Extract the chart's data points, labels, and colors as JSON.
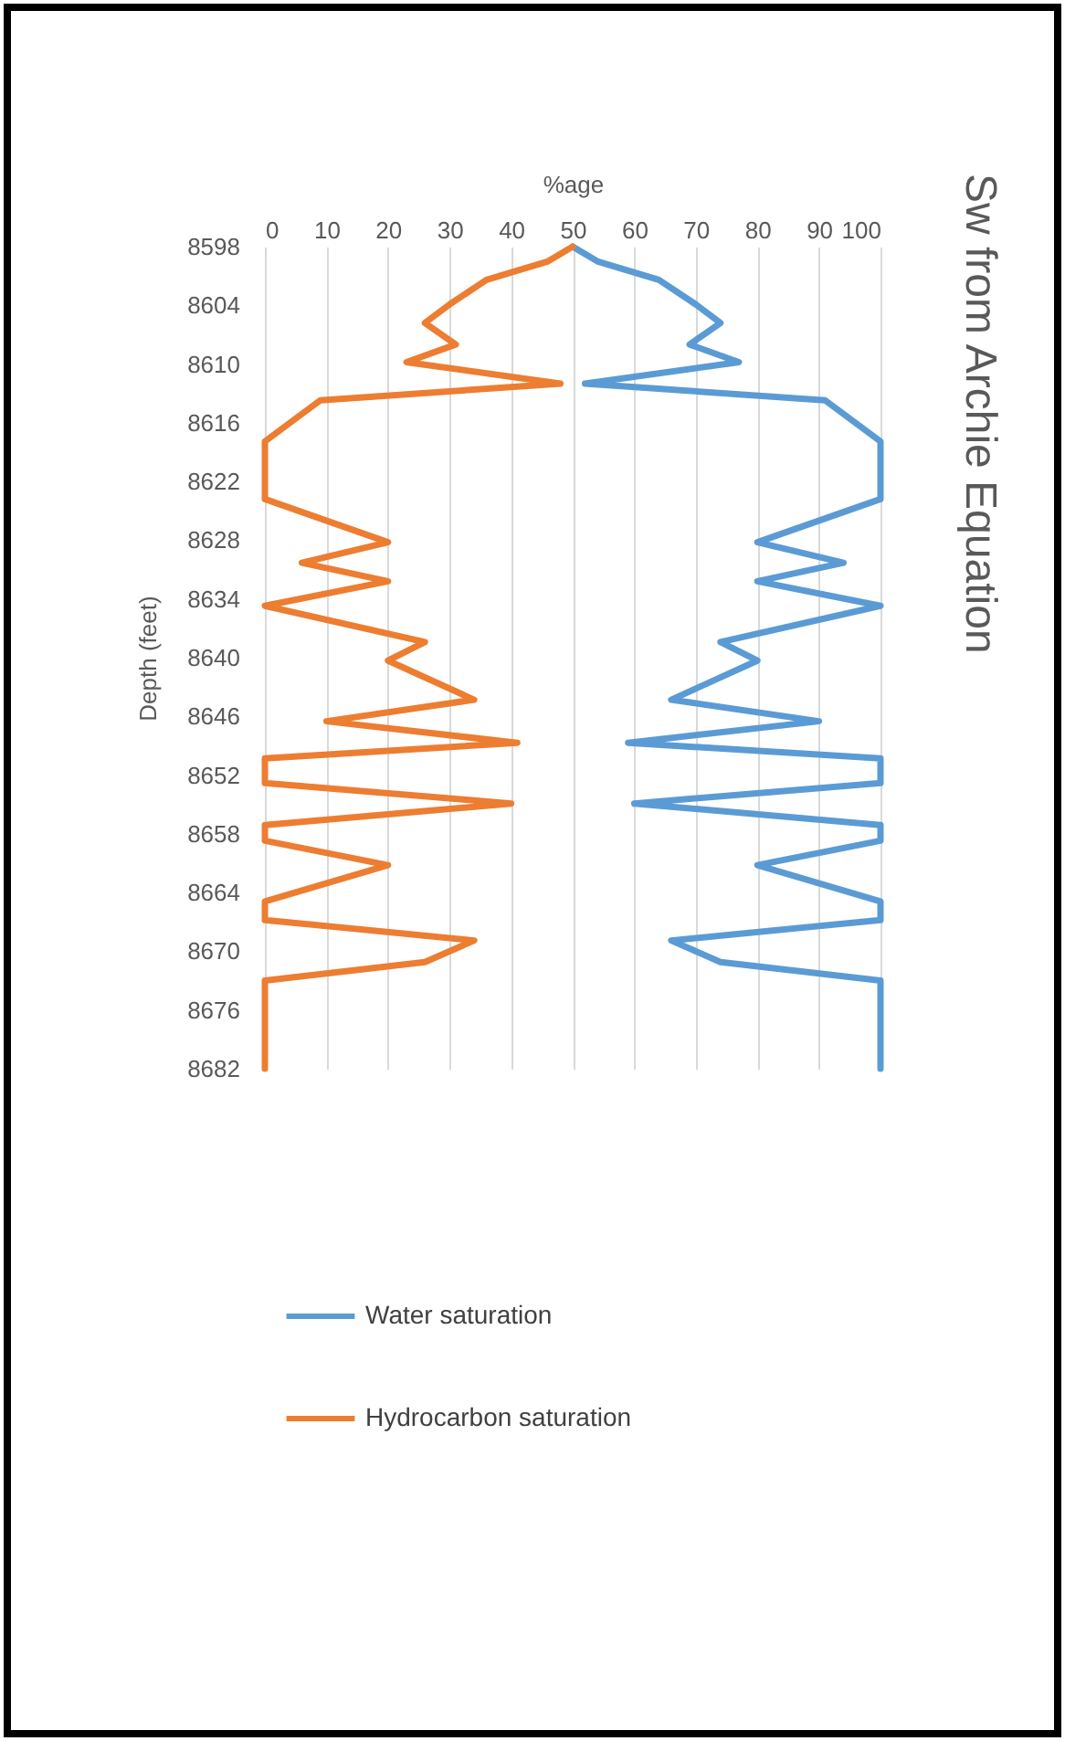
{
  "chart_data": {
    "type": "line",
    "title": "Sw from Archie Equation",
    "xlabel": "%age",
    "ylabel": "Depth (feet)",
    "orientation": "horizontal",
    "x": [
      8598,
      8599.5,
      8601.4,
      8603.9,
      8605.8,
      8608,
      8609.8,
      8612,
      8613.7,
      8617.9,
      8623.8,
      8628.2,
      8630.3,
      8632.2,
      8634.7,
      8638.4,
      8640.3,
      8644.3,
      8646.5,
      8648.7,
      8650.3,
      8652.8,
      8654.9,
      8657.1,
      8658.7,
      8661.2,
      8664.9,
      8666.8,
      8668.9,
      8671.1,
      8673,
      8682
    ],
    "series": [
      {
        "name": "Water saturation",
        "color": "#5b9bd5",
        "values": [
          50,
          54,
          64,
          70,
          74,
          69,
          77,
          52,
          91,
          100,
          100,
          80,
          94,
          80,
          100,
          74,
          80,
          66,
          90,
          59,
          100,
          100,
          60,
          100,
          100,
          80,
          100,
          100,
          66,
          74,
          100,
          100
        ]
      },
      {
        "name": "Hydrocarbon saturation",
        "color": "#ed7d31",
        "values": [
          50,
          46,
          36,
          30,
          26,
          31,
          23,
          48,
          9,
          0,
          0,
          20,
          6,
          20,
          0,
          26,
          20,
          34,
          10,
          41,
          0,
          0,
          40,
          0,
          0,
          20,
          0,
          0,
          34,
          26,
          0,
          0
        ]
      }
    ],
    "xlim": [
      0,
      100
    ],
    "xticks": [
      0,
      10,
      20,
      30,
      40,
      50,
      60,
      70,
      80,
      90,
      100
    ],
    "ylim": [
      8682,
      8598
    ],
    "yticks": [
      8598,
      8604,
      8610,
      8616,
      8622,
      8628,
      8634,
      8640,
      8646,
      8652,
      8658,
      8664,
      8670,
      8676,
      8682
    ],
    "grid": "x",
    "legend": "bottom",
    "line_style": "solid"
  }
}
